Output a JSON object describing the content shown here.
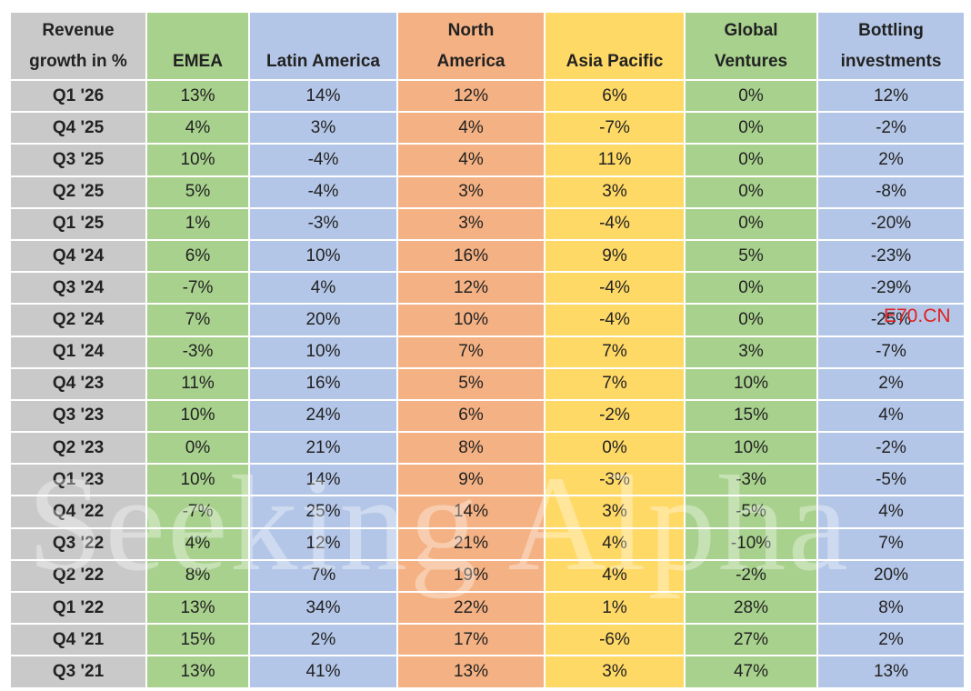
{
  "colors": {
    "label": "#c9c9c9",
    "EMEA": "#a8d18d",
    "Latin America": "#b4c6e7",
    "North America": "#f4b183",
    "Asia Pacific": "#ffd966",
    "Global Ventures": "#a8d18d",
    "Bottling investments": "#b4c6e7"
  },
  "chart_data": {
    "type": "table",
    "corner_header": [
      "Revenue",
      "growth in %"
    ],
    "columns": [
      {
        "key": "EMEA",
        "header": [
          "",
          "EMEA"
        ]
      },
      {
        "key": "Latin America",
        "header": [
          "",
          "Latin America"
        ]
      },
      {
        "key": "North America",
        "header": [
          "North",
          "America"
        ]
      },
      {
        "key": "Asia Pacific",
        "header": [
          "",
          "Asia Pacific"
        ]
      },
      {
        "key": "Global Ventures",
        "header": [
          "Global",
          "Ventures"
        ]
      },
      {
        "key": "Bottling investments",
        "header": [
          "Bottling",
          "investments"
        ]
      }
    ],
    "rows": [
      {
        "label": "Q1 '26",
        "values": [
          "13%",
          "14%",
          "12%",
          "6%",
          "0%",
          "12%"
        ]
      },
      {
        "label": "Q4 '25",
        "values": [
          "4%",
          "3%",
          "4%",
          "-7%",
          "0%",
          "-2%"
        ]
      },
      {
        "label": "Q3 '25",
        "values": [
          "10%",
          "-4%",
          "4%",
          "11%",
          "0%",
          "2%"
        ]
      },
      {
        "label": "Q2 '25",
        "values": [
          "5%",
          "-4%",
          "3%",
          "3%",
          "0%",
          "-8%"
        ]
      },
      {
        "label": "Q1 '25",
        "values": [
          "1%",
          "-3%",
          "3%",
          "-4%",
          "0%",
          "-20%"
        ]
      },
      {
        "label": "Q4 '24",
        "values": [
          "6%",
          "10%",
          "16%",
          "9%",
          "5%",
          "-23%"
        ]
      },
      {
        "label": "Q3 '24",
        "values": [
          "-7%",
          "4%",
          "12%",
          "-4%",
          "0%",
          "-29%"
        ]
      },
      {
        "label": "Q2 '24",
        "values": [
          "7%",
          "20%",
          "10%",
          "-4%",
          "0%",
          "-25%"
        ]
      },
      {
        "label": "Q1 '24",
        "values": [
          "-3%",
          "10%",
          "7%",
          "7%",
          "3%",
          "-7%"
        ]
      },
      {
        "label": "Q4 '23",
        "values": [
          "11%",
          "16%",
          "5%",
          "7%",
          "10%",
          "2%"
        ]
      },
      {
        "label": "Q3 '23",
        "values": [
          "10%",
          "24%",
          "6%",
          "-2%",
          "15%",
          "4%"
        ]
      },
      {
        "label": "Q2 '23",
        "values": [
          "0%",
          "21%",
          "8%",
          "0%",
          "10%",
          "-2%"
        ]
      },
      {
        "label": "Q1 '23",
        "values": [
          "10%",
          "14%",
          "9%",
          "-3%",
          "-3%",
          "-5%"
        ]
      },
      {
        "label": "Q4 '22",
        "values": [
          "-7%",
          "25%",
          "14%",
          "3%",
          "-5%",
          "4%"
        ]
      },
      {
        "label": "Q3 '22",
        "values": [
          "4%",
          "12%",
          "21%",
          "4%",
          "-10%",
          "7%"
        ]
      },
      {
        "label": "Q2 '22",
        "values": [
          "8%",
          "7%",
          "19%",
          "4%",
          "-2%",
          "20%"
        ]
      },
      {
        "label": "Q1 '22",
        "values": [
          "13%",
          "34%",
          "22%",
          "1%",
          "28%",
          "8%"
        ]
      },
      {
        "label": "Q4 '21",
        "values": [
          "15%",
          "2%",
          "17%",
          "-6%",
          "27%",
          "2%"
        ]
      },
      {
        "label": "Q3 '21",
        "values": [
          "13%",
          "41%",
          "13%",
          "3%",
          "47%",
          "13%"
        ]
      }
    ]
  },
  "watermark": "Seeking Alpha",
  "stamp": "E70.CN"
}
